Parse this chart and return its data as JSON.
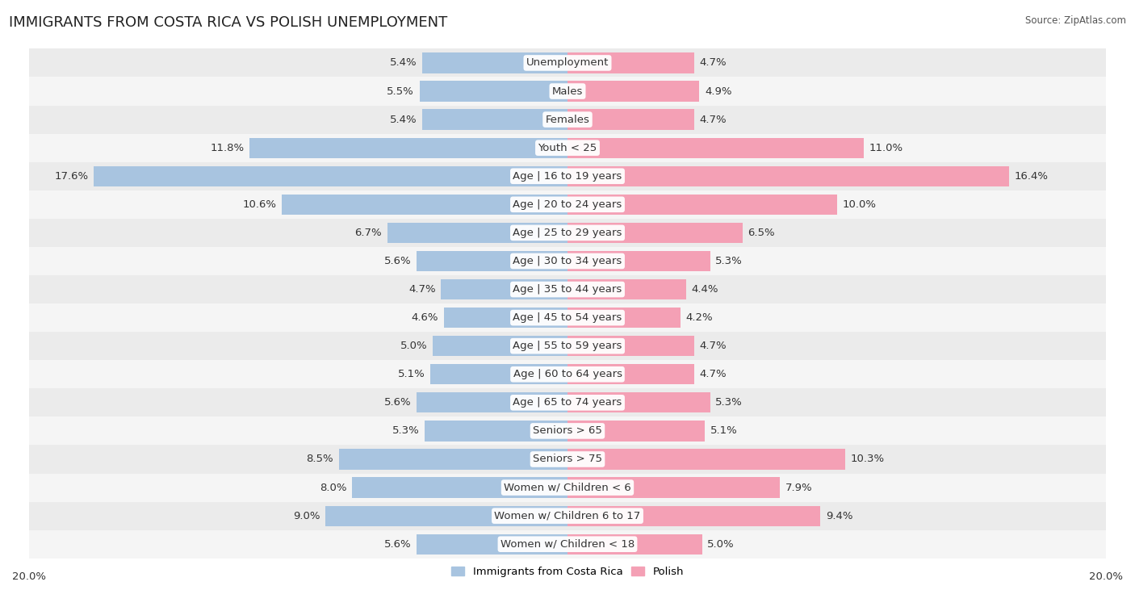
{
  "title": "IMMIGRANTS FROM COSTA RICA VS POLISH UNEMPLOYMENT",
  "source": "Source: ZipAtlas.com",
  "categories": [
    "Unemployment",
    "Males",
    "Females",
    "Youth < 25",
    "Age | 16 to 19 years",
    "Age | 20 to 24 years",
    "Age | 25 to 29 years",
    "Age | 30 to 34 years",
    "Age | 35 to 44 years",
    "Age | 45 to 54 years",
    "Age | 55 to 59 years",
    "Age | 60 to 64 years",
    "Age | 65 to 74 years",
    "Seniors > 65",
    "Seniors > 75",
    "Women w/ Children < 6",
    "Women w/ Children 6 to 17",
    "Women w/ Children < 18"
  ],
  "left_values": [
    5.4,
    5.5,
    5.4,
    11.8,
    17.6,
    10.6,
    6.7,
    5.6,
    4.7,
    4.6,
    5.0,
    5.1,
    5.6,
    5.3,
    8.5,
    8.0,
    9.0,
    5.6
  ],
  "right_values": [
    4.7,
    4.9,
    4.7,
    11.0,
    16.4,
    10.0,
    6.5,
    5.3,
    4.4,
    4.2,
    4.7,
    4.7,
    5.3,
    5.1,
    10.3,
    7.9,
    9.4,
    5.0
  ],
  "left_color": "#a8c4e0",
  "right_color": "#f4a0b5",
  "row_bg_odd": "#ebebeb",
  "row_bg_even": "#f5f5f5",
  "max_val": 20.0,
  "legend_left": "Immigrants from Costa Rica",
  "legend_right": "Polish",
  "label_fontsize": 9.5,
  "title_fontsize": 13,
  "cat_fontsize": 9.5
}
